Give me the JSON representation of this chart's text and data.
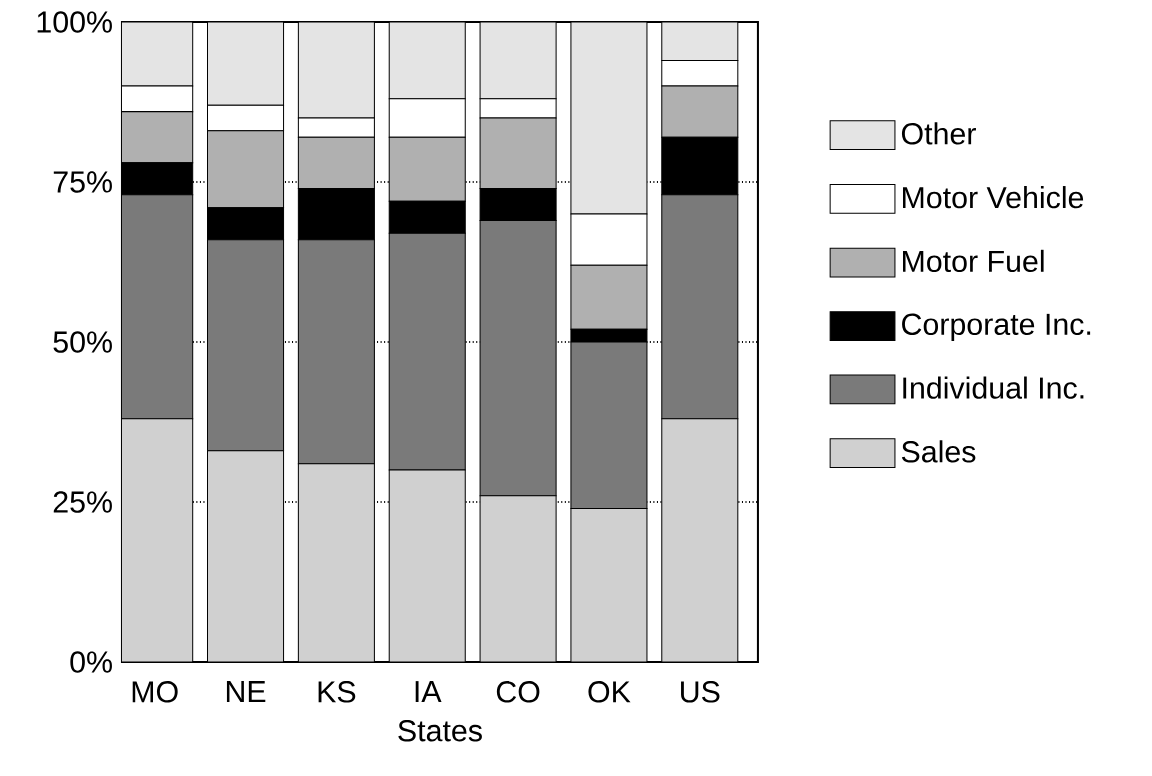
{
  "chart_data": {
    "type": "bar",
    "stacked": true,
    "xlabel": "States",
    "categories": [
      "MO",
      "NE",
      "KS",
      "IA",
      "CO",
      "OK",
      "US"
    ],
    "series": [
      {
        "name": "Sales",
        "color": "#d0d0d0",
        "values": [
          38,
          33,
          31,
          30,
          26,
          24,
          38
        ]
      },
      {
        "name": "Individual Inc.",
        "color": "#7a7a7a",
        "values": [
          35,
          33,
          35,
          37,
          43,
          26,
          35
        ]
      },
      {
        "name": "Corporate Inc.",
        "color": "#000000",
        "values": [
          5,
          5,
          8,
          5,
          5,
          2,
          9
        ]
      },
      {
        "name": "Motor Fuel",
        "color": "#b0b0b0",
        "values": [
          8,
          12,
          8,
          10,
          11,
          10,
          8
        ]
      },
      {
        "name": "Motor Vehicle",
        "color": "#ffffff",
        "values": [
          4,
          4,
          3,
          6,
          3,
          8,
          4
        ]
      },
      {
        "name": "Other",
        "color": "#e4e4e4",
        "values": [
          10,
          13,
          15,
          12,
          12,
          30,
          6
        ]
      }
    ],
    "ylim": [
      0,
      100
    ],
    "yticks": [
      {
        "value": 0,
        "label": "0%"
      },
      {
        "value": 25,
        "label": "25%"
      },
      {
        "value": 50,
        "label": "50%"
      },
      {
        "value": 75,
        "label": "75%"
      },
      {
        "value": 100,
        "label": "100%"
      }
    ],
    "grid": "y",
    "legend": "right"
  }
}
